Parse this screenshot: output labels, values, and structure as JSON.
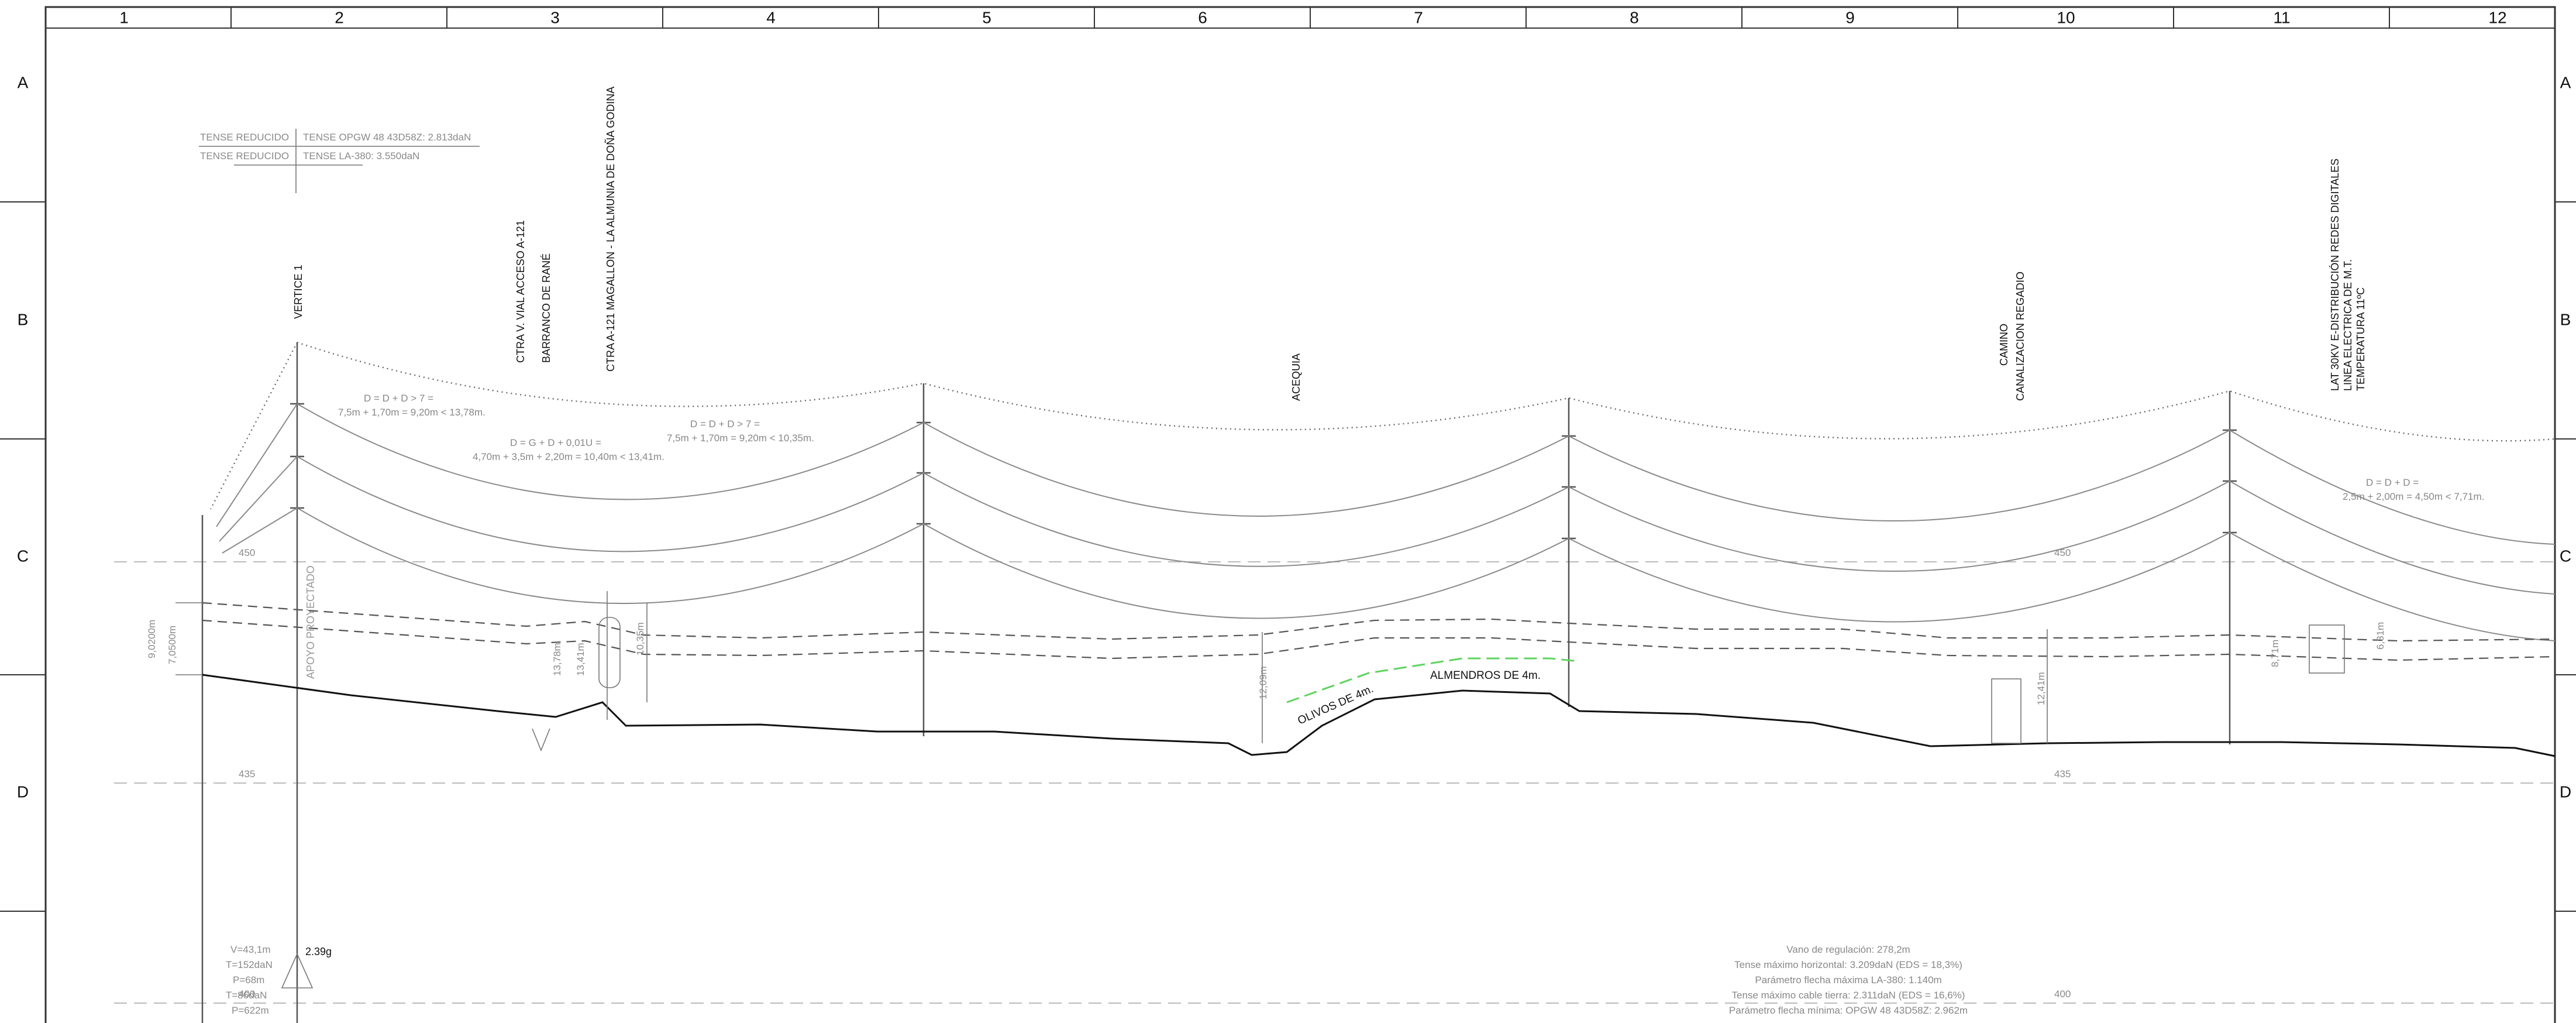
{
  "grid": {
    "columns": [
      "1",
      "2",
      "3",
      "4",
      "5",
      "6",
      "7",
      "8",
      "9",
      "10",
      "11",
      "12"
    ],
    "rows": [
      "A",
      "B",
      "C",
      "D"
    ]
  },
  "legend": {
    "line1_left": "TENSE REDUCIDO",
    "line1_right": "TENSE OPGW 48 43D58Z: 2.813daN",
    "line2_left": "TENSE REDUCIDO",
    "line2_right": "TENSE LA-380: 3.550daN"
  },
  "crossings": {
    "vertice": "VERTICE 1",
    "ctra_vial": "CTRA V. VIAL ACCESO A-121",
    "barranco": "BARRANCO DE RANÉ",
    "ctra_a121": "CTRA A-121 MAGALLON - LA ALMUNIA DE DOÑA GODINA",
    "acequia": "ACEQUIA",
    "camino": "CAMINO",
    "canalizacion": "CANALIZACION REGADIO",
    "lat_line1": "LAT 30KV E-DISTRIBUCIÓN REDES DIGITALES",
    "lat_line2": "LINEA ELECTRICA DE M.T.",
    "lat_line3": "TEMPERATURA 11ºC",
    "apoyo": "APOYO PROYECTADO"
  },
  "formulas": {
    "f1_line1": "D = D + D > 7 =",
    "f1_line2": "7,5m + 1,70m = 9,20m < 13,78m.",
    "f2_line1": "D = G + D + 0,01U =",
    "f2_line2": "4,70m + 3,5m + 2,20m = 10,40m < 13,41m.",
    "f3_line1": "D = D + D > 7 =",
    "f3_line2": "7,5m + 1,70m = 9,20m < 10,35m.",
    "f4_line1": "D = D + D =",
    "f4_line2": "2,5m + 2,00m = 4,50m < 7,71m."
  },
  "crops": {
    "olivos": "OLIVOS DE 4m.",
    "almendros": "ALMENDROS DE 4m."
  },
  "dimensions": {
    "d1": "9,0200m",
    "d2": "7,0500m",
    "d3": "13,78m",
    "d4": "13,41m",
    "d5": "10,35m",
    "d6": "12,09m",
    "d7": "12,41m",
    "d8": "6,31m",
    "d9": "8,71m"
  },
  "elevations": {
    "e450a": "450",
    "e450b": "450",
    "e435a": "435",
    "e435b": "435",
    "e400a": "400",
    "e400b": "400"
  },
  "support": {
    "v": "V=43,1m",
    "t1": "T=152daN",
    "p1": "P=68m",
    "t2": "T=86daN",
    "p2": "P=622m",
    "angle": "2.39g"
  },
  "span_info": {
    "l1": "Vano de regulación: 278,2m",
    "l2": "Tense máximo horizontal: 3.209daN (EDS = 18,3%)",
    "l3": "Parámetro flecha máxima LA-380: 1.140m",
    "l4": "Tense máximo cable tierra: 2.311daN (EDS = 16,6%)",
    "l5": "Parámetro flecha mínima: OPGW 48 43D58Z: 2.962m"
  }
}
